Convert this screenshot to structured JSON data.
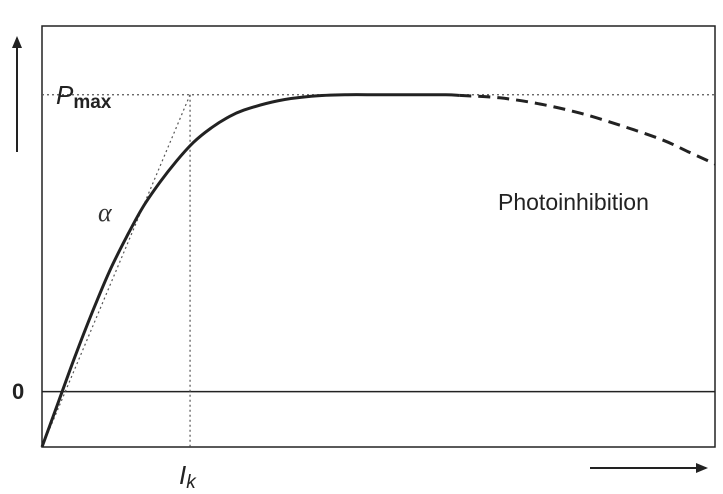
{
  "chart_data": {
    "type": "line",
    "title": "",
    "xlabel": "",
    "ylabel": "",
    "xlim": [
      0,
      10
    ],
    "ylim": [
      -0.18,
      1.0
    ],
    "colors": {
      "curve": "#222222",
      "guides": "#555555",
      "axis": "#222222"
    },
    "series": [
      {
        "style": "solid",
        "points": [
          [
            0.0,
            -0.18
          ],
          [
            0.25,
            -0.03
          ],
          [
            0.5,
            0.12
          ],
          [
            0.75,
            0.26
          ],
          [
            1.0,
            0.39
          ],
          [
            1.25,
            0.5
          ],
          [
            1.5,
            0.6
          ],
          [
            1.75,
            0.68
          ],
          [
            2.0,
            0.75
          ],
          [
            2.25,
            0.81
          ],
          [
            2.5,
            0.855
          ],
          [
            2.75,
            0.89
          ],
          [
            3.0,
            0.915
          ],
          [
            3.5,
            0.945
          ],
          [
            4.0,
            0.96
          ],
          [
            4.5,
            0.965
          ],
          [
            5.0,
            0.965
          ],
          [
            5.5,
            0.965
          ],
          [
            6.0,
            0.965
          ],
          [
            6.2,
            0.963
          ]
        ]
      },
      {
        "style": "dashed",
        "points": [
          [
            6.2,
            0.963
          ],
          [
            6.8,
            0.955
          ],
          [
            7.4,
            0.935
          ],
          [
            8.0,
            0.905
          ],
          [
            8.6,
            0.865
          ],
          [
            9.2,
            0.82
          ],
          [
            9.6,
            0.78
          ],
          [
            10.0,
            0.74
          ]
        ]
      }
    ],
    "reference_lines": {
      "pmax_value": 0.965,
      "zero_value": 0,
      "ik_value": 2.2,
      "alpha_slope_from": [
        0.0,
        -0.18
      ]
    },
    "labels": {
      "pmax": "P",
      "pmax_sub": "max",
      "zero": "0",
      "alpha": "α",
      "ik": "I",
      "ik_sub": "k",
      "photoinhibition": "Photoinhibition"
    }
  }
}
